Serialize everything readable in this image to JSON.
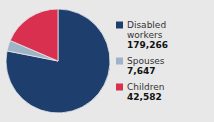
{
  "chart_data": {
    "type": "pie",
    "categories": [
      "Disabled\nworkers",
      "Spouses",
      "Children"
    ],
    "values": [
      179266,
      7647,
      42582
    ],
    "value_labels": [
      "179,266",
      "7,647",
      "42,582"
    ],
    "data_labels": true,
    "colors": [
      "#1e3f6e",
      "#a0b4c8",
      "#d93050"
    ]
  }
}
